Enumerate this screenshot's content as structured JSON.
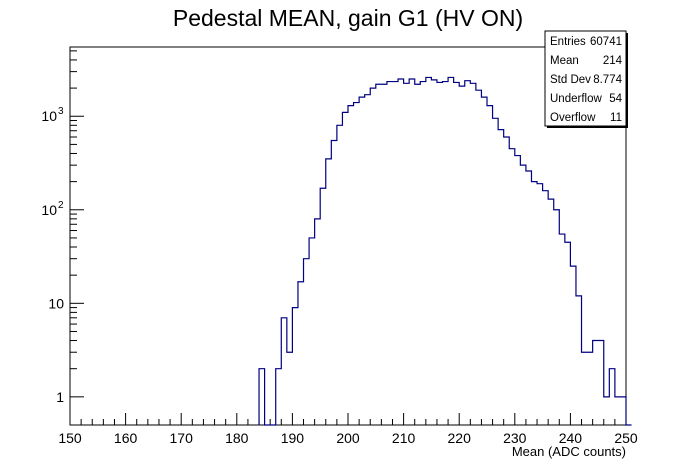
{
  "chart_data": {
    "type": "histogram",
    "title": "Pedestal MEAN, gain G1 (HV ON)",
    "xlabel": "Mean (ADC counts)",
    "ylabel": "",
    "xlim": [
      150,
      250
    ],
    "ylim": [
      0.5,
      5500
    ],
    "yscale": "log",
    "grid": false,
    "line_color": "#000080",
    "x_ticks": [
      "150",
      "160",
      "170",
      "180",
      "190",
      "200",
      "210",
      "220",
      "230",
      "240",
      "250"
    ],
    "y_ticks": [
      {
        "value": 1,
        "label": "1"
      },
      {
        "value": 10,
        "label": "10"
      },
      {
        "value": 100,
        "label": "10",
        "exp": "2"
      },
      {
        "value": 1000,
        "label": "10",
        "exp": "3"
      }
    ],
    "bin_width": 1,
    "bins": [
      {
        "x": 184,
        "y": 2
      },
      {
        "x": 185,
        "y": 0
      },
      {
        "x": 186,
        "y": 0
      },
      {
        "x": 187,
        "y": 2
      },
      {
        "x": 188,
        "y": 7
      },
      {
        "x": 189,
        "y": 3
      },
      {
        "x": 190,
        "y": 9
      },
      {
        "x": 191,
        "y": 17
      },
      {
        "x": 192,
        "y": 30
      },
      {
        "x": 193,
        "y": 50
      },
      {
        "x": 194,
        "y": 80
      },
      {
        "x": 195,
        "y": 170
      },
      {
        "x": 196,
        "y": 350
      },
      {
        "x": 197,
        "y": 550
      },
      {
        "x": 198,
        "y": 800
      },
      {
        "x": 199,
        "y": 1100
      },
      {
        "x": 200,
        "y": 1300
      },
      {
        "x": 201,
        "y": 1400
      },
      {
        "x": 202,
        "y": 1600
      },
      {
        "x": 203,
        "y": 1700
      },
      {
        "x": 204,
        "y": 2000
      },
      {
        "x": 205,
        "y": 2200
      },
      {
        "x": 206,
        "y": 2200
      },
      {
        "x": 207,
        "y": 2350
      },
      {
        "x": 208,
        "y": 2350
      },
      {
        "x": 209,
        "y": 2500
      },
      {
        "x": 210,
        "y": 2250
      },
      {
        "x": 211,
        "y": 2500
      },
      {
        "x": 212,
        "y": 2200
      },
      {
        "x": 213,
        "y": 2350
      },
      {
        "x": 214,
        "y": 2600
      },
      {
        "x": 215,
        "y": 2450
      },
      {
        "x": 216,
        "y": 2300
      },
      {
        "x": 217,
        "y": 2350
      },
      {
        "x": 218,
        "y": 2600
      },
      {
        "x": 219,
        "y": 2300
      },
      {
        "x": 220,
        "y": 2100
      },
      {
        "x": 221,
        "y": 2400
      },
      {
        "x": 222,
        "y": 2250
      },
      {
        "x": 223,
        "y": 1900
      },
      {
        "x": 224,
        "y": 1600
      },
      {
        "x": 225,
        "y": 1300
      },
      {
        "x": 226,
        "y": 950
      },
      {
        "x": 227,
        "y": 720
      },
      {
        "x": 228,
        "y": 600
      },
      {
        "x": 229,
        "y": 450
      },
      {
        "x": 230,
        "y": 380
      },
      {
        "x": 231,
        "y": 300
      },
      {
        "x": 232,
        "y": 260
      },
      {
        "x": 233,
        "y": 200
      },
      {
        "x": 234,
        "y": 190
      },
      {
        "x": 235,
        "y": 160
      },
      {
        "x": 236,
        "y": 130
      },
      {
        "x": 237,
        "y": 100
      },
      {
        "x": 238,
        "y": 55
      },
      {
        "x": 239,
        "y": 45
      },
      {
        "x": 240,
        "y": 25
      },
      {
        "x": 241,
        "y": 12
      },
      {
        "x": 242,
        "y": 3
      },
      {
        "x": 243,
        "y": 3
      },
      {
        "x": 244,
        "y": 4
      },
      {
        "x": 245,
        "y": 4
      },
      {
        "x": 246,
        "y": 1
      },
      {
        "x": 247,
        "y": 2
      },
      {
        "x": 248,
        "y": 1
      },
      {
        "x": 249,
        "y": 1
      },
      {
        "x": 250,
        "y": 0
      }
    ],
    "stats": [
      {
        "label": "Entries",
        "value": "60741"
      },
      {
        "label": "Mean",
        "value": "214"
      },
      {
        "label": "Std Dev",
        "value": "8.774"
      },
      {
        "label": "Underflow",
        "value": "54"
      },
      {
        "label": "Overflow",
        "value": "11"
      }
    ]
  }
}
